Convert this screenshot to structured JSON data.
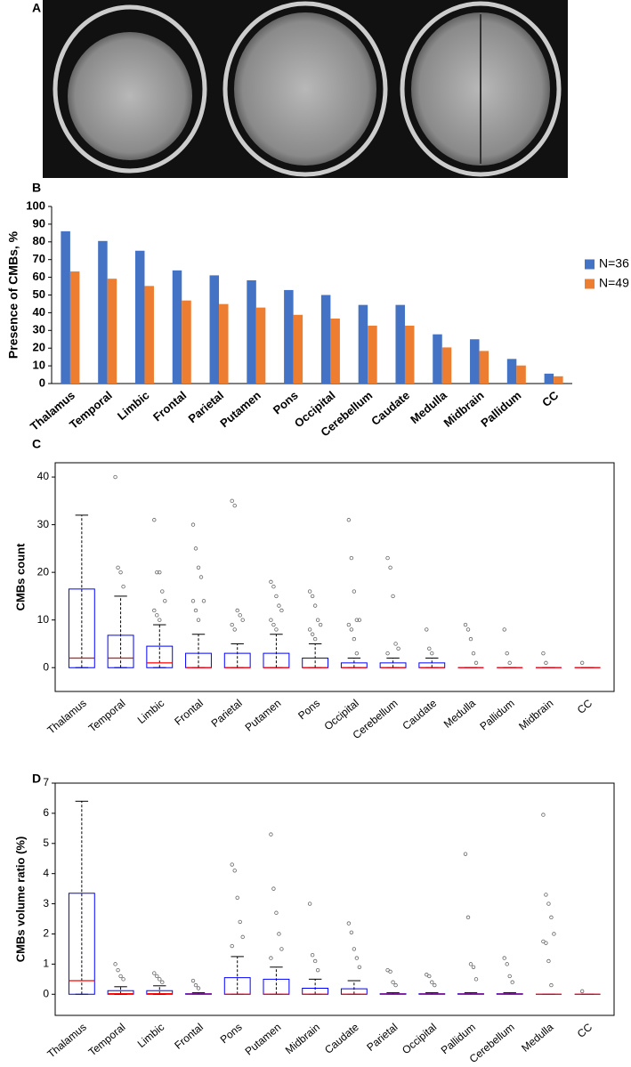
{
  "image_panel": {
    "label": "A"
  },
  "chart_data": [
    {
      "type": "bar",
      "label": "B",
      "ylabel": "Presence of CMBs, %",
      "categories": [
        "Thalamus",
        "Temporal",
        "Limbic",
        "Frontal",
        "Parietal",
        "Putamen",
        "Pons",
        "Occipital",
        "Cerebellum",
        "Caudate",
        "Medulla",
        "Midbrain",
        "Pallidum",
        "CC"
      ],
      "series": [
        {
          "name": "N=36",
          "color": "#4472c4",
          "values": [
            86,
            80.5,
            75,
            63.9,
            61.1,
            58.3,
            52.8,
            50,
            44.4,
            44.4,
            27.8,
            25,
            13.9,
            5.6
          ]
        },
        {
          "name": "N=49",
          "color": "#ed7d31",
          "values": [
            63.3,
            59.2,
            55.1,
            46.9,
            44.9,
            42.9,
            38.8,
            36.7,
            32.7,
            32.7,
            20.4,
            18.4,
            10.2,
            4.1
          ]
        }
      ],
      "ylim": [
        0,
        100
      ],
      "yticks": [
        0,
        10,
        20,
        30,
        40,
        50,
        60,
        70,
        80,
        90,
        100
      ],
      "legend": "right"
    },
    {
      "type": "box",
      "label": "C",
      "ylabel": "CMBs count",
      "categories": [
        "Thalamus",
        "Temporal",
        "Limbic",
        "Frontal",
        "Parietal",
        "Putamen",
        "Pons",
        "Occipital",
        "Cerebellum",
        "Caudate",
        "Medulla",
        "Pallidum",
        "Midbrain",
        "CC"
      ],
      "q1": [
        0,
        0,
        0,
        0,
        0,
        0,
        0,
        0,
        0,
        0,
        0,
        0,
        0,
        0
      ],
      "median": [
        2,
        2,
        1,
        0,
        0,
        0,
        0,
        0,
        0,
        0,
        0,
        0,
        0,
        0
      ],
      "q3": [
        16.5,
        6.8,
        4.5,
        3,
        3,
        3,
        2,
        1,
        1,
        1,
        0,
        0,
        0,
        0
      ],
      "whisker_low": [
        0,
        0,
        0,
        0,
        0,
        0,
        0,
        0,
        0,
        0,
        0,
        0,
        0,
        0
      ],
      "whisker_high": [
        32,
        15,
        9,
        7,
        5,
        7,
        5,
        2,
        2,
        2,
        0,
        0,
        0,
        0
      ],
      "outliers": [
        [],
        [
          40,
          21,
          20,
          17
        ],
        [
          31,
          20,
          20,
          16,
          14,
          12,
          11,
          10
        ],
        [
          30,
          25,
          21,
          19,
          14,
          14,
          12,
          10
        ],
        [
          35,
          34,
          12,
          11,
          10,
          9,
          8
        ],
        [
          18,
          17,
          15,
          13,
          12,
          10,
          9,
          8
        ],
        [
          16,
          15,
          13,
          10,
          9,
          8,
          7,
          6
        ],
        [
          31,
          23,
          16,
          10,
          10,
          9,
          8,
          6,
          3
        ],
        [
          23,
          21,
          15,
          5,
          4,
          3
        ],
        [
          8,
          4,
          3
        ],
        [
          9,
          8,
          6,
          3,
          1
        ],
        [
          8,
          3,
          1
        ],
        [
          3,
          1
        ],
        [
          1
        ]
      ],
      "box_color": "#0000ff",
      "median_color": "#ff0000",
      "ylim": [
        -5,
        43
      ],
      "yticks": [
        0,
        10,
        20,
        30,
        40
      ]
    },
    {
      "type": "box",
      "label": "D",
      "ylabel": "CMBs volume ratio (%)",
      "categories": [
        "Thalamus",
        "Temporal",
        "Limbic",
        "Frontal",
        "Pons",
        "Putamen",
        "Midbrain",
        "Caudate",
        "Parietal",
        "Occipital",
        "Pallidum",
        "Cerebellum",
        "Medulla",
        "CC"
      ],
      "q1": [
        0,
        0,
        0,
        0,
        0,
        0,
        0,
        0,
        0,
        0,
        0,
        0,
        0,
        0
      ],
      "median": [
        0.45,
        0.02,
        0.02,
        0,
        0,
        0,
        0,
        0,
        0,
        0,
        0,
        0,
        0,
        0
      ],
      "q3": [
        3.35,
        0.12,
        0.12,
        0.02,
        0.55,
        0.5,
        0.2,
        0.18,
        0.02,
        0.02,
        0.02,
        0.02,
        0,
        0
      ],
      "whisker_low": [
        0,
        0,
        0,
        0,
        0,
        0,
        0,
        0,
        0,
        0,
        0,
        0,
        0,
        0
      ],
      "whisker_high": [
        6.4,
        0.25,
        0.28,
        0.05,
        1.25,
        0.9,
        0.5,
        0.45,
        0.05,
        0.05,
        0.05,
        0.05,
        0,
        0
      ],
      "outliers": [
        [],
        [
          1.0,
          0.8,
          0.6,
          0.5
        ],
        [
          0.7,
          0.6,
          0.5,
          0.4
        ],
        [
          0.45,
          0.3,
          0.2
        ],
        [
          4.3,
          4.1,
          3.2,
          2.4,
          1.9,
          1.6
        ],
        [
          5.3,
          3.5,
          2.7,
          2.0,
          1.5,
          1.2
        ],
        [
          3.0,
          1.3,
          1.1,
          0.8
        ],
        [
          2.35,
          2.05,
          1.5,
          1.2,
          0.9
        ],
        [
          0.8,
          0.75,
          0.4,
          0.3
        ],
        [
          0.65,
          0.6,
          0.4,
          0.3
        ],
        [
          4.65,
          2.55,
          1.0,
          0.9,
          0.5
        ],
        [
          1.2,
          1.0,
          0.6,
          0.4
        ],
        [
          5.95,
          3.3,
          3.0,
          2.55,
          2.0,
          1.75,
          1.7,
          1.1,
          0.3
        ],
        [
          0.1
        ]
      ],
      "box_color": "#0000ff",
      "median_color": "#ff0000",
      "ylim": [
        -0.7,
        7
      ],
      "yticks": [
        0,
        1,
        2,
        3,
        4,
        5,
        6,
        7
      ]
    }
  ]
}
